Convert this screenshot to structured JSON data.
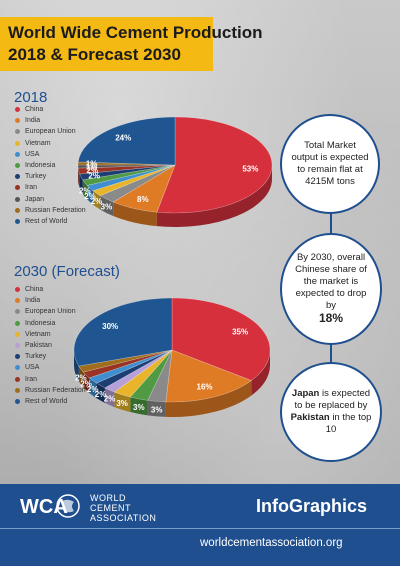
{
  "title": {
    "line1": "World Wide Cement Production",
    "line2": "2018 & Forecast 2030"
  },
  "colors": {
    "accent_yellow": "#f4b913",
    "brand_blue": "#1f4f8f",
    "header_blue": "#1f4f8f"
  },
  "section_2018": {
    "heading": "2018"
  },
  "section_2030": {
    "heading": "2030 (Forecast)"
  },
  "chart_data": [
    {
      "type": "pie",
      "title": "2018",
      "series": [
        {
          "name": "China",
          "value": 53,
          "label": "53%",
          "color": "#d6303d"
        },
        {
          "name": "India",
          "value": 8,
          "label": "8%",
          "color": "#e07b25"
        },
        {
          "name": "European Union",
          "value": 3,
          "label": "3%",
          "color": "#8a8a8a"
        },
        {
          "name": "Vietnam",
          "value": 2,
          "label": "2%",
          "color": "#e8b52a"
        },
        {
          "name": "USA",
          "value": 2,
          "label": "2%",
          "color": "#3f8fd0"
        },
        {
          "name": "Indonesia",
          "value": 2,
          "label": "2%",
          "color": "#4f9a42"
        },
        {
          "name": "Turkey",
          "value": 2,
          "label": "2%",
          "color": "#1d3e73"
        },
        {
          "name": "Iran",
          "value": 2,
          "label": "2%",
          "color": "#9a3324"
        },
        {
          "name": "Japan",
          "value": 1,
          "label": "1%",
          "color": "#555555"
        },
        {
          "name": "Russian Federation",
          "value": 1,
          "label": "1%",
          "color": "#a06d1c"
        },
        {
          "name": "Rest of World",
          "value": 24,
          "label": "24%",
          "color": "#1f5691"
        }
      ]
    },
    {
      "type": "pie",
      "title": "2030 (Forecast)",
      "series": [
        {
          "name": "China",
          "value": 35,
          "label": "35%",
          "color": "#d6303d"
        },
        {
          "name": "India",
          "value": 16,
          "label": "16%",
          "color": "#e07b25"
        },
        {
          "name": "European Union",
          "value": 3,
          "label": "3%",
          "color": "#8a8a8a"
        },
        {
          "name": "Indonesia",
          "value": 3,
          "label": "3%",
          "color": "#4f9a42"
        },
        {
          "name": "Vietnam",
          "value": 3,
          "label": "3%",
          "color": "#e8b52a"
        },
        {
          "name": "Pakistan",
          "value": 2,
          "label": "2%",
          "color": "#b7a0d8"
        },
        {
          "name": "Turkey",
          "value": 2,
          "label": "2%",
          "color": "#1d3e73"
        },
        {
          "name": "USA",
          "value": 2,
          "label": "2%",
          "color": "#3f8fd0"
        },
        {
          "name": "Iran",
          "value": 2,
          "label": "2%",
          "color": "#9a3324"
        },
        {
          "name": "Russian Federation",
          "value": 2,
          "label": "2%",
          "color": "#a06d1c"
        },
        {
          "name": "Rest of World",
          "value": 30,
          "label": "30%",
          "color": "#1f5691"
        }
      ]
    }
  ],
  "callouts": {
    "market": "Total Market output is expected to remain flat at 4215M tons",
    "china_pre": "By 2030, overall Chinese share of the market is expected to drop by",
    "china_value": "18%",
    "japan_name": "Japan",
    "japan_mid": "is expected to be replaced by",
    "pakistan_name": "Pakistan",
    "japan_post": "in the top 10"
  },
  "footer": {
    "logo_mark": "WCA",
    "logo_line1": "WORLD",
    "logo_line2": "CEMENT",
    "logo_line3": "ASSOCIATION",
    "infographics": "InfoGraphics",
    "website": "worldcementassociation.org"
  }
}
